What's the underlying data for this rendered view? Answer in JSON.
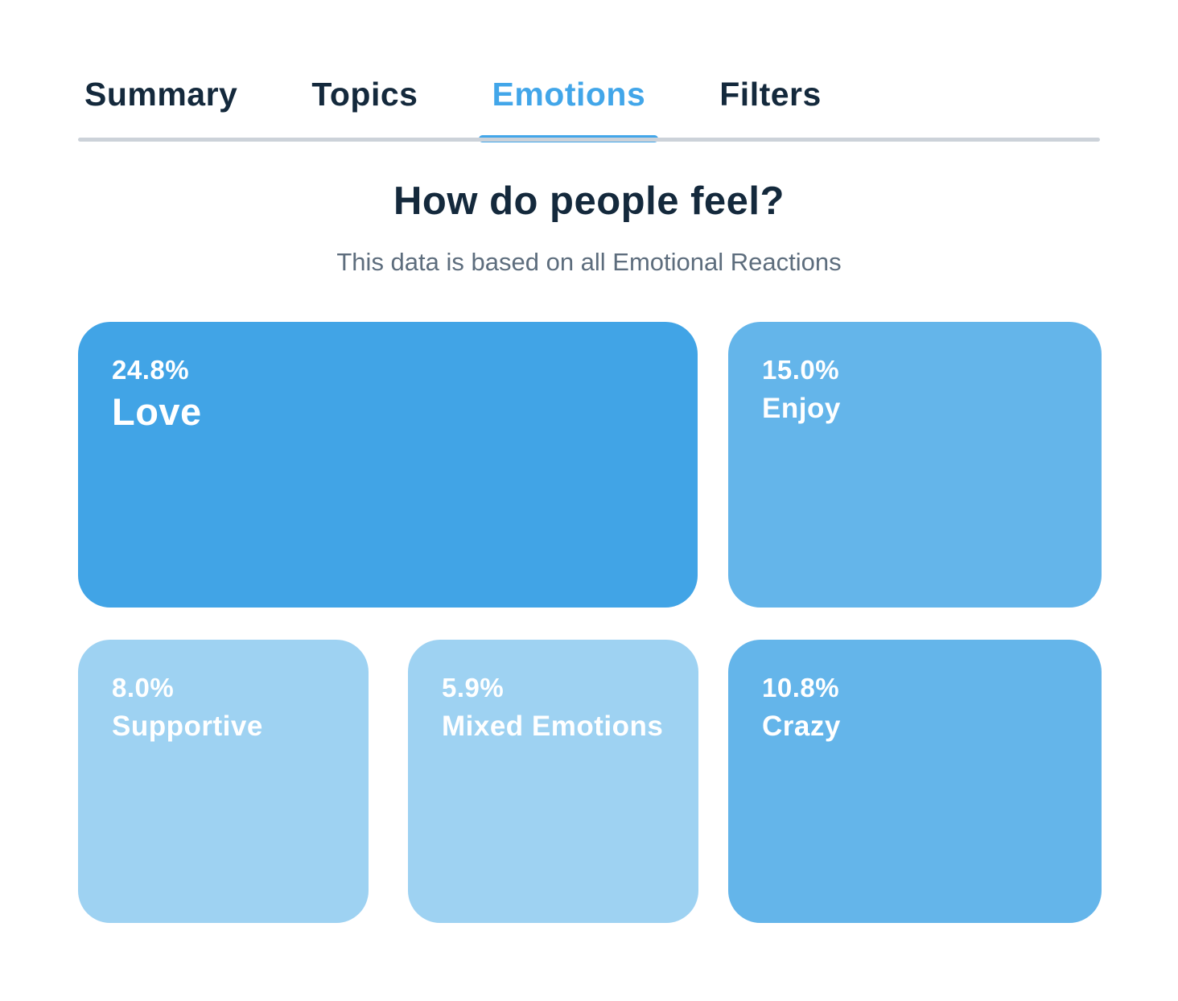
{
  "tabs": {
    "items": [
      {
        "label": "Summary",
        "active": false
      },
      {
        "label": "Topics",
        "active": false
      },
      {
        "label": "Emotions",
        "active": true
      },
      {
        "label": "Filters",
        "active": false
      }
    ]
  },
  "header": {
    "title": "How do people feel?",
    "subtitle": "This data is based on all Emotional Reactions"
  },
  "chart_data": {
    "type": "treemap",
    "title": "How do people feel?",
    "subtitle": "This data is based on all Emotional Reactions",
    "unit": "percent",
    "items": [
      {
        "label": "Love",
        "value": 24.8,
        "display": "24.8%",
        "color": "#41a4e6"
      },
      {
        "label": "Enjoy",
        "value": 15.0,
        "display": "15.0%",
        "color": "#64b5ea"
      },
      {
        "label": "Supportive",
        "value": 8.0,
        "display": "8.0%",
        "color": "#9ed2f2"
      },
      {
        "label": "Mixed Emotions",
        "value": 5.9,
        "display": "5.9%",
        "color": "#9ed2f2"
      },
      {
        "label": "Crazy",
        "value": 10.8,
        "display": "10.8%",
        "color": "#64b5ea"
      }
    ]
  },
  "colors": {
    "accent": "#42a6e9",
    "text_dark": "#14293c",
    "text_muted": "#5d6d7d",
    "divider": "#ccd2d9",
    "tile_large": "#41a4e6",
    "tile_medium": "#64b5ea",
    "tile_light": "#9ed2f2"
  }
}
